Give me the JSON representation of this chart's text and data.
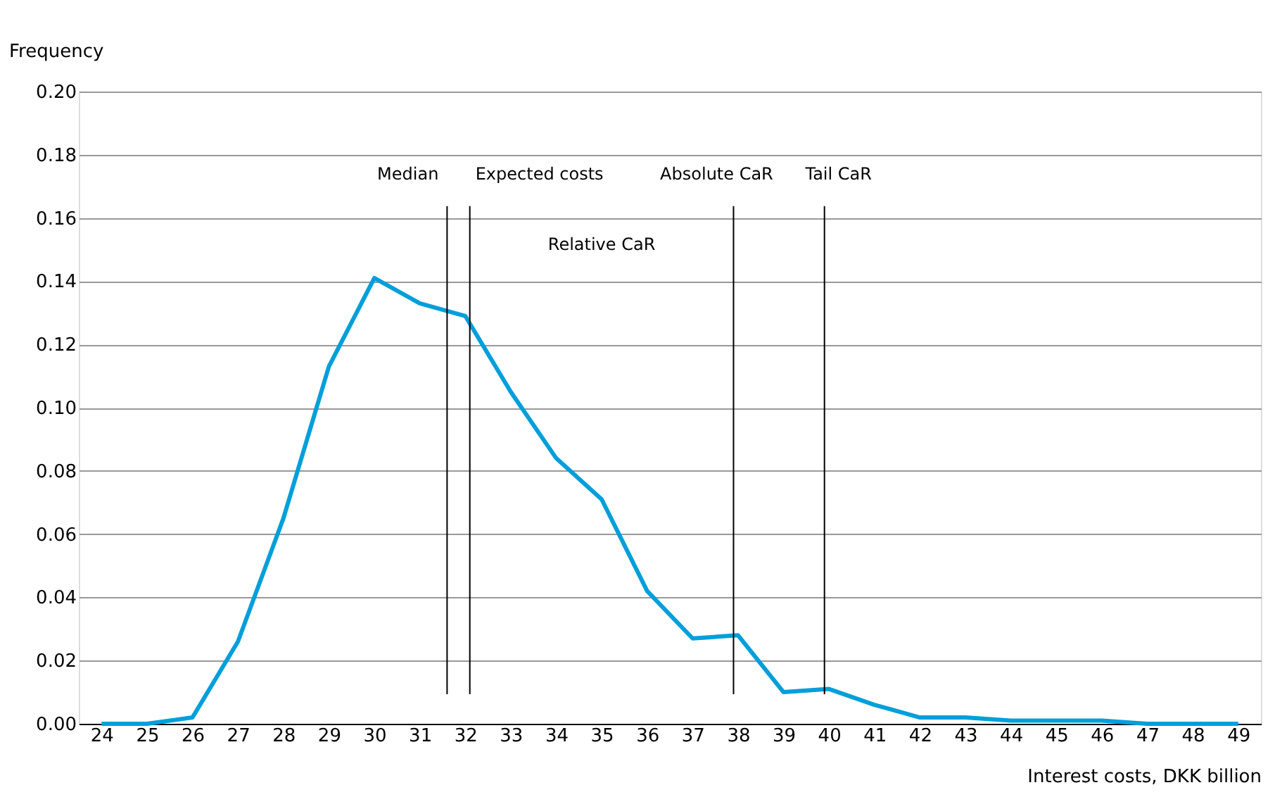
{
  "chart_data": {
    "type": "line",
    "xlabel": "Interest costs, DKK billion",
    "ylabel": "Frequency",
    "x": [
      24,
      25,
      26,
      27,
      28,
      29,
      30,
      31,
      32,
      33,
      34,
      35,
      36,
      37,
      38,
      39,
      40,
      41,
      42,
      43,
      44,
      45,
      46,
      47,
      48,
      49
    ],
    "series": [
      {
        "color": "#009fda",
        "values": [
          0,
          0,
          0.002,
          0.026,
          0.065,
          0.113,
          0.141,
          0.133,
          0.129,
          0.105,
          0.084,
          0.071,
          0.042,
          0.027,
          0.028,
          0.01,
          0.011,
          0.006,
          0.002,
          0.002,
          0.001,
          0.001,
          0.001,
          0,
          0,
          0
        ]
      }
    ],
    "xlim": [
      23.5,
      49.5
    ],
    "xticks": [
      24,
      25,
      26,
      27,
      28,
      29,
      30,
      31,
      32,
      33,
      34,
      35,
      36,
      37,
      38,
      39,
      40,
      41,
      42,
      43,
      44,
      45,
      46,
      47,
      48,
      49
    ],
    "ylim": [
      0,
      0.2
    ],
    "yticks": [
      {
        "value": 0,
        "label": "0.00"
      },
      0.02,
      0.04,
      0.06,
      0.08,
      {
        "value": 0.1,
        "label": "0.10"
      },
      0.12,
      0.14,
      0.16,
      0.18,
      {
        "value": 0.2,
        "label": "0.20"
      }
    ],
    "grid": "y",
    "marker": "none",
    "line_style": "solid",
    "ref_lines": [
      {
        "axis": "x",
        "value": 31.6,
        "label": "Median",
        "color": "#000000"
      },
      {
        "axis": "x",
        "value": 32.1,
        "label": "Expected costs",
        "color": "#000000"
      },
      {
        "axis": "x",
        "value": 37.9,
        "label": "Absolute CaR",
        "color": "#000000"
      },
      {
        "axis": "x",
        "value": 39.9,
        "label": "Tail CaR",
        "color": "#000000"
      }
    ],
    "annotations": [
      "Relative CaR"
    ]
  }
}
